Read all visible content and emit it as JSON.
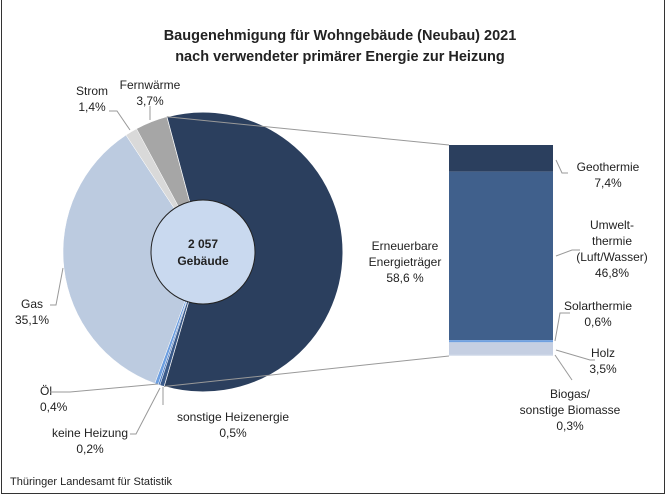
{
  "chart_data": {
    "type": "pie",
    "title": "Baugenehmigung für Wohngebäude (Neubau) 2021",
    "subtitle": "nach verwendeter primärer Energie zur Heizung",
    "center_label": {
      "value": "2 057",
      "unit": "Gebäude"
    },
    "slices": [
      {
        "name": "Erneuerbare Energieträger",
        "label_lines": [
          "Erneuerbare",
          "Energieträger",
          "58,6 %"
        ],
        "value": 58.6,
        "color": "#2b3f5e"
      },
      {
        "name": "sonstige Heizenergie",
        "label_lines": [
          "sonstige Heizenergie",
          "0,5%"
        ],
        "value": 0.5,
        "color": "#3a5a8a"
      },
      {
        "name": "keine Heizung",
        "label_lines": [
          "keine Heizung",
          "0,2%"
        ],
        "value": 0.2,
        "color": "#4f7cc0"
      },
      {
        "name": "Öl",
        "label_lines": [
          "Öl",
          "0,4%"
        ],
        "value": 0.4,
        "color": "#6c9ee0"
      },
      {
        "name": "Gas",
        "label_lines": [
          "Gas",
          "35,1%"
        ],
        "value": 35.1,
        "color": "#bccbe0"
      },
      {
        "name": "Strom",
        "label_lines": [
          "Strom",
          "1,4%"
        ],
        "value": 1.4,
        "color": "#d9d9d9"
      },
      {
        "name": "Fernwärme",
        "label_lines": [
          "Fernwärme",
          "3,7%"
        ],
        "value": 3.7,
        "color": "#a6a6a6"
      }
    ],
    "breakdown": {
      "of": "Erneuerbare Energieträger",
      "type": "stacked-bar",
      "segments": [
        {
          "name": "Geothermie",
          "label_lines": [
            "Geothermie",
            "7,4%"
          ],
          "value": 7.4,
          "color": "#2b3f5e"
        },
        {
          "name": "Umweltthermie (Luft/Wasser)",
          "label_lines": [
            "Umwelt-",
            "thermie",
            "(Luft/Wasser)",
            "46,8%"
          ],
          "value": 46.8,
          "color": "#40608c"
        },
        {
          "name": "Solarthermie",
          "label_lines": [
            "Solarthermie",
            "0,6%"
          ],
          "value": 0.6,
          "color": "#6fa0e0"
        },
        {
          "name": "Holz",
          "label_lines": [
            "Holz",
            "3,5%"
          ],
          "value": 3.5,
          "color": "#c5cfe2"
        },
        {
          "name": "Biogas/sonstige Biomasse",
          "label_lines": [
            "Biogas/",
            "sonstige Biomasse",
            "0,3%"
          ],
          "value": 0.3,
          "color": "#dbe2ee"
        }
      ]
    }
  },
  "source": "Thüringer Landesamt für Statistik"
}
